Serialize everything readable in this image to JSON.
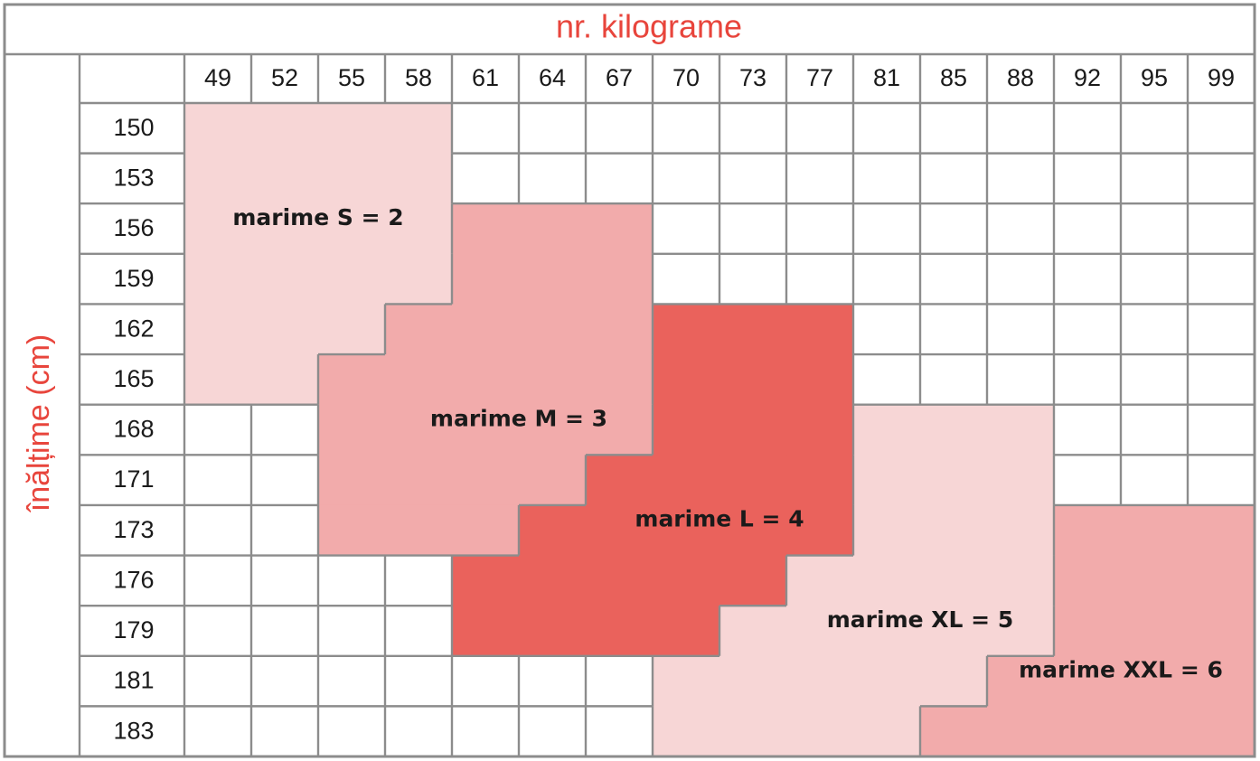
{
  "chart_data": {
    "type": "heatmap",
    "title": "nr. kilograme",
    "ylabel": "înălțime (cm)",
    "x_categories": [
      "49",
      "52",
      "55",
      "58",
      "61",
      "64",
      "67",
      "70",
      "73",
      "77",
      "81",
      "85",
      "88",
      "92",
      "95",
      "99"
    ],
    "y_categories": [
      "150",
      "153",
      "156",
      "159",
      "162",
      "165",
      "168",
      "171",
      "173",
      "176",
      "179",
      "181",
      "183"
    ],
    "zones": [
      {
        "label": "marime S = 2",
        "size": 2,
        "color": "#f7d6d6",
        "cells": [
          [
            0,
            0
          ],
          [
            1,
            0
          ],
          [
            2,
            0
          ],
          [
            3,
            0
          ],
          [
            0,
            1
          ],
          [
            1,
            1
          ],
          [
            2,
            1
          ],
          [
            3,
            1
          ],
          [
            0,
            2
          ],
          [
            1,
            2
          ],
          [
            2,
            2
          ],
          [
            3,
            2
          ],
          [
            0,
            3
          ],
          [
            1,
            3
          ],
          [
            2,
            3
          ],
          [
            3,
            3
          ],
          [
            0,
            4
          ],
          [
            1,
            4
          ],
          [
            2,
            4
          ],
          [
            0,
            5
          ],
          [
            1,
            5
          ]
        ]
      },
      {
        "label": "marime M = 3",
        "size": 3,
        "color": "#f2abab",
        "cells": [
          [
            4,
            2
          ],
          [
            5,
            2
          ],
          [
            6,
            2
          ],
          [
            4,
            3
          ],
          [
            5,
            3
          ],
          [
            6,
            3
          ],
          [
            3,
            4
          ],
          [
            4,
            4
          ],
          [
            5,
            4
          ],
          [
            6,
            4
          ],
          [
            2,
            5
          ],
          [
            3,
            5
          ],
          [
            4,
            5
          ],
          [
            5,
            5
          ],
          [
            6,
            5
          ],
          [
            2,
            6
          ],
          [
            3,
            6
          ],
          [
            4,
            6
          ],
          [
            5,
            6
          ],
          [
            6,
            6
          ],
          [
            2,
            7
          ],
          [
            3,
            7
          ],
          [
            4,
            7
          ],
          [
            5,
            7
          ],
          [
            2,
            8
          ],
          [
            3,
            8
          ],
          [
            4,
            8
          ]
        ]
      },
      {
        "label": "marime L = 4",
        "size": 4,
        "color": "#ea625c",
        "cells": [
          [
            7,
            4
          ],
          [
            8,
            4
          ],
          [
            9,
            4
          ],
          [
            7,
            5
          ],
          [
            8,
            5
          ],
          [
            9,
            5
          ],
          [
            7,
            6
          ],
          [
            8,
            6
          ],
          [
            9,
            6
          ],
          [
            6,
            7
          ],
          [
            7,
            7
          ],
          [
            8,
            7
          ],
          [
            9,
            7
          ],
          [
            5,
            8
          ],
          [
            6,
            8
          ],
          [
            7,
            8
          ],
          [
            8,
            8
          ],
          [
            9,
            8
          ],
          [
            4,
            9
          ],
          [
            5,
            9
          ],
          [
            6,
            9
          ],
          [
            7,
            9
          ],
          [
            8,
            9
          ],
          [
            4,
            10
          ],
          [
            5,
            10
          ],
          [
            6,
            10
          ],
          [
            7,
            10
          ]
        ]
      },
      {
        "label": "marime XL = 5",
        "size": 5,
        "color": "#f7d6d6",
        "cells": [
          [
            10,
            6
          ],
          [
            11,
            6
          ],
          [
            12,
            6
          ],
          [
            10,
            7
          ],
          [
            11,
            7
          ],
          [
            12,
            7
          ],
          [
            10,
            8
          ],
          [
            11,
            8
          ],
          [
            12,
            8
          ],
          [
            9,
            9
          ],
          [
            10,
            9
          ],
          [
            11,
            9
          ],
          [
            12,
            9
          ],
          [
            8,
            10
          ],
          [
            9,
            10
          ],
          [
            10,
            10
          ],
          [
            11,
            10
          ],
          [
            12,
            10
          ],
          [
            7,
            11
          ],
          [
            8,
            11
          ],
          [
            9,
            11
          ],
          [
            10,
            11
          ],
          [
            11,
            11
          ],
          [
            7,
            12
          ],
          [
            8,
            12
          ],
          [
            9,
            12
          ],
          [
            10,
            12
          ]
        ]
      },
      {
        "label": "marime XXL = 6",
        "size": 6,
        "color": "#f2abab",
        "cells": [
          [
            13,
            8
          ],
          [
            14,
            8
          ],
          [
            15,
            8
          ],
          [
            13,
            9
          ],
          [
            14,
            9
          ],
          [
            15,
            9
          ],
          [
            13,
            10
          ],
          [
            14,
            10
          ],
          [
            15,
            10
          ],
          [
            12,
            11
          ],
          [
            13,
            11
          ],
          [
            14,
            11
          ],
          [
            15,
            11
          ],
          [
            11,
            12
          ],
          [
            12,
            12
          ],
          [
            13,
            12
          ],
          [
            14,
            12
          ],
          [
            15,
            12
          ]
        ]
      }
    ],
    "zone_label_anchor": [
      [
        2,
        2
      ],
      [
        5,
        6
      ],
      [
        8,
        8
      ],
      [
        11,
        10
      ],
      [
        14,
        11
      ]
    ],
    "grid": true,
    "grid_color": "#8c8c8c",
    "title_color": "#e8453c"
  }
}
